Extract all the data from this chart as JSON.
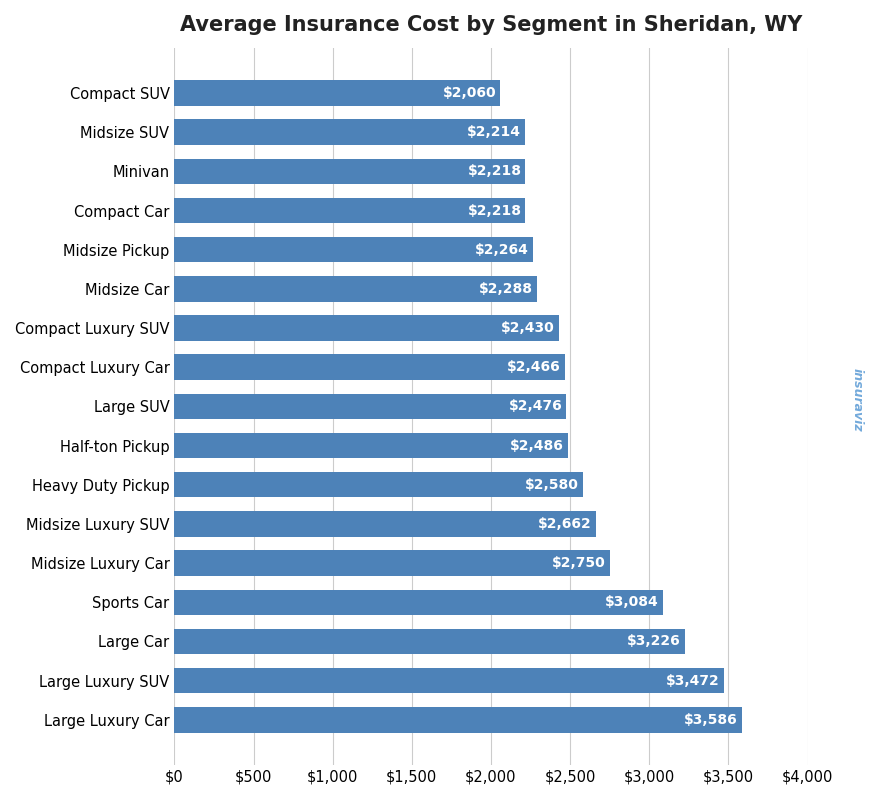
{
  "title": "Average Insurance Cost by Segment in Sheridan, WY",
  "categories": [
    "Compact SUV",
    "Midsize SUV",
    "Minivan",
    "Compact Car",
    "Midsize Pickup",
    "Midsize Car",
    "Compact Luxury SUV",
    "Compact Luxury Car",
    "Large SUV",
    "Half-ton Pickup",
    "Heavy Duty Pickup",
    "Midsize Luxury SUV",
    "Midsize Luxury Car",
    "Sports Car",
    "Large Car",
    "Large Luxury SUV",
    "Large Luxury Car"
  ],
  "values": [
    2060,
    2214,
    2218,
    2218,
    2264,
    2288,
    2430,
    2466,
    2476,
    2486,
    2580,
    2662,
    2750,
    3084,
    3226,
    3472,
    3586
  ],
  "bar_color": "#4d82b8",
  "label_color": "#ffffff",
  "background_color": "#ffffff",
  "grid_color": "#cccccc",
  "xlim": [
    0,
    4000
  ],
  "xtick_values": [
    0,
    500,
    1000,
    1500,
    2000,
    2500,
    3000,
    3500,
    4000
  ],
  "title_fontsize": 15,
  "label_fontsize": 10.5,
  "tick_fontsize": 10.5,
  "bar_label_fontsize": 10,
  "watermark_text": "insuraviz",
  "watermark_color": "#5b9bd5"
}
